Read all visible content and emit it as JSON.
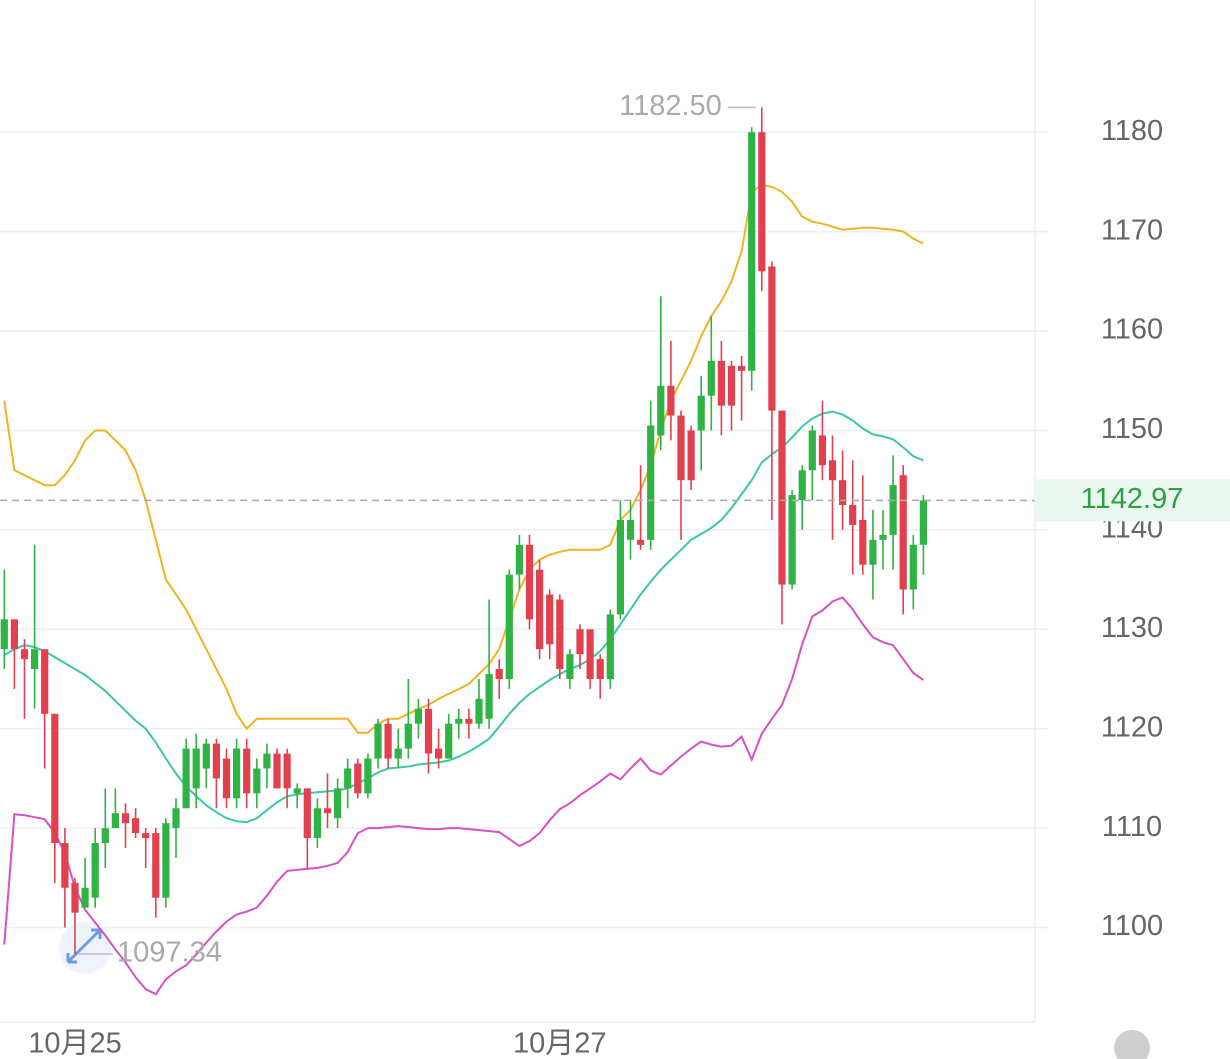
{
  "chart_data": {
    "type": "candlestick",
    "categories": [
      null,
      null,
      null,
      null,
      null,
      null,
      null,
      "10月25",
      null,
      null,
      null,
      null,
      null,
      null,
      null,
      null,
      null,
      null,
      null,
      null,
      null,
      null,
      null,
      null,
      null,
      null,
      null,
      null,
      null,
      null,
      null,
      null,
      null,
      null,
      null,
      null,
      null,
      null,
      null,
      null,
      null,
      null,
      null,
      null,
      null,
      null,
      null,
      null,
      null,
      null,
      null,
      null,
      null,
      null,
      null,
      "10月27",
      null,
      null,
      null,
      null,
      null,
      null,
      null,
      null,
      null,
      null,
      null,
      null,
      null,
      null,
      null,
      null,
      null,
      null,
      null,
      null,
      null,
      null,
      null,
      null,
      null,
      null,
      null,
      null,
      null,
      null,
      null,
      null,
      null,
      null,
      null,
      null
    ],
    "open": [
      1128,
      1131,
      1128,
      1126,
      1128,
      1121.5,
      1108.5,
      1104.5,
      1102,
      1103,
      1108.5,
      1110,
      1111.5,
      1111,
      1109.5,
      1109.5,
      1103,
      1110,
      1112,
      1114,
      1116,
      1118.5,
      1117,
      1113,
      1118,
      1113.5,
      1116,
      1117.5,
      1117.5,
      1113.5,
      1114,
      1109,
      1112,
      1111,
      1114,
      1116.5,
      1113.5,
      1117,
      1120.5,
      1117,
      1118,
      1120.5,
      1122,
      1118,
      1117,
      1120.5,
      1121,
      1120.5,
      1121,
      1126,
      1125,
      1135.5,
      1138.5,
      1136,
      1133.5,
      1133,
      1125,
      1130,
      1130,
      1127,
      1125,
      1131.5,
      1139,
      1139,
      1139,
      1149.5,
      1154.5,
      1151.5,
      1150,
      1150,
      1153.5,
      1157,
      1156.5,
      1156.5,
      1156,
      1180,
      1166.5,
      1152,
      1134.5,
      1143,
      1146,
      1149.5,
      1147,
      1145,
      1142.5,
      1141,
      1136.5,
      1139,
      1139.5,
      1145.5,
      1134,
      1138.5
    ],
    "high": [
      1136,
      1131,
      1129,
      1138.5,
      1128,
      1121.5,
      1110,
      1105,
      1107,
      1110,
      1114,
      1114,
      1112.5,
      1112,
      1110,
      1110,
      1111,
      1113,
      1119,
      1119.5,
      1119,
      1119,
      1118,
      1119,
      1119,
      1117,
      1118.5,
      1118,
      1118,
      1114.5,
      1114,
      1113,
      1115.5,
      1115,
      1117,
      1117,
      1117.5,
      1121,
      1121,
      1120,
      1125,
      1123,
      1123,
      1120,
      1121.5,
      1122,
      1122,
      1125,
      1133,
      1127,
      1136,
      1139.5,
      1139.5,
      1137,
      1134,
      1133.5,
      1128,
      1130.5,
      1130,
      1127.5,
      1132,
      1143,
      1143,
      1146.5,
      1153,
      1163.5,
      1159,
      1152,
      1150.5,
      1155.5,
      1161.5,
      1159,
      1157,
      1157.5,
      1180.5,
      1182.5,
      1167,
      1152,
      1144,
      1146.5,
      1150.5,
      1153,
      1149.5,
      1148,
      1147,
      1145.5,
      1142,
      1142,
      1147.5,
      1146.5,
      1139.5,
      1143.5
    ],
    "low": [
      1126,
      1124,
      1121,
      1122,
      1116,
      1104.5,
      1100,
      1097.34,
      1102,
      1102,
      1106,
      1110,
      1108,
      1109,
      1106,
      1101,
      1102,
      1107,
      1112,
      1112,
      1114,
      1112,
      1112,
      1112,
      1112,
      1112,
      1114,
      1114,
      1112,
      1112,
      1106,
      1108,
      1110,
      1110,
      1112,
      1113,
      1113,
      1116,
      1116,
      1116,
      1117,
      1119,
      1115.5,
      1116,
      1117,
      1119,
      1119,
      1120,
      1120,
      1123,
      1124,
      1134,
      1130,
      1127,
      1127,
      1125,
      1124,
      1126,
      1124,
      1123,
      1124,
      1131,
      1137,
      1138,
      1138,
      1148,
      1149,
      1139,
      1144,
      1146,
      1150,
      1149.5,
      1150,
      1151,
      1154,
      1164,
      1141,
      1130.5,
      1134,
      1140,
      1143,
      1145,
      1139,
      1140,
      1135.5,
      1135.5,
      1133,
      1136,
      1136,
      1131.5,
      1132,
      1135.5
    ],
    "close": [
      1131,
      1128,
      1127,
      1128,
      1121.5,
      1108.5,
      1104,
      1101.5,
      1104,
      1108.5,
      1110,
      1111.5,
      1110.5,
      1109.5,
      1109,
      1103,
      1110.5,
      1112,
      1118,
      1118,
      1118.5,
      1115,
      1113,
      1118,
      1113.5,
      1116,
      1117.5,
      1114,
      1114,
      1114,
      1109,
      1112,
      1111.5,
      1114,
      1116,
      1113.5,
      1117,
      1120.5,
      1117,
      1118,
      1120.5,
      1122,
      1117.5,
      1117,
      1120.5,
      1121,
      1120.5,
      1123,
      1125.5,
      1125,
      1135.5,
      1138.5,
      1131,
      1128,
      1128.5,
      1126,
      1127.5,
      1127.5,
      1125,
      1125,
      1131.5,
      1141,
      1141,
      1138.5,
      1150.5,
      1154.5,
      1151.5,
      1145,
      1145,
      1153.5,
      1157,
      1152.5,
      1152.5,
      1156,
      1180,
      1166,
      1152,
      1134.5,
      1143.5,
      1146,
      1150,
      1146.5,
      1145,
      1142.5,
      1140.5,
      1136.5,
      1139,
      1139.5,
      1144.5,
      1134,
      1138.5,
      1142.97
    ],
    "up_color": "#2fb344",
    "down_color": "#e2404f",
    "bands": [
      {
        "color": "#f0b323",
        "values": [
          1153,
          1146,
          1145.5,
          1145,
          1144.5,
          1144.5,
          1145.5,
          1147,
          1149,
          1150,
          1150,
          1149,
          1148,
          1146,
          1143,
          1139,
          1135,
          1133.5,
          1132,
          1130,
          1128,
          1126,
          1124,
          1121.5,
          1120,
          1121,
          1121,
          1121,
          1121,
          1121,
          1121,
          1121,
          1121,
          1121,
          1121,
          1119.6,
          1119.6,
          1120.5,
          1121,
          1121,
          1121.5,
          1122,
          1122.4,
          1123,
          1123.5,
          1124,
          1124.5,
          1125.5,
          1126.5,
          1128,
          1131,
          1134,
          1136,
          1137,
          1137.5,
          1137.8,
          1138,
          1138,
          1138,
          1138,
          1138.5,
          1141,
          1142,
          1144,
          1146.5,
          1150,
          1153,
          1155,
          1157,
          1159.5,
          1161.5,
          1163,
          1165,
          1168,
          1174,
          1174.7,
          1174.5,
          1174,
          1173,
          1171.5,
          1171,
          1170.8,
          1170.5,
          1170.2,
          1170.3,
          1170.4,
          1170.4,
          1170.3,
          1170.2,
          1170,
          1169.3,
          1168.8
        ]
      },
      {
        "color": "#3cc7a6",
        "values": [
          1127.4,
          1128,
          1128.4,
          1128.2,
          1127.8,
          1127.2,
          1126.6,
          1126,
          1125.4,
          1124.6,
          1123.8,
          1122.8,
          1121.8,
          1120.8,
          1120,
          1118.6,
          1117,
          1115.5,
          1114.2,
          1113.2,
          1112.3,
          1111.6,
          1111,
          1110.7,
          1110.6,
          1111,
          1111.8,
          1112.6,
          1113.2,
          1113.4,
          1113.5,
          1113.6,
          1113.7,
          1113.8,
          1114,
          1114.5,
          1115,
          1115.6,
          1116,
          1116.1,
          1116.2,
          1116.4,
          1116.5,
          1116.6,
          1116.8,
          1117.2,
          1117.7,
          1118.3,
          1119,
          1120.2,
          1121.5,
          1122.6,
          1123.5,
          1124.2,
          1124.9,
          1125.5,
          1126,
          1126.4,
          1127,
          1127.8,
          1129,
          1130.5,
          1132,
          1133.5,
          1134.8,
          1136,
          1137,
          1138,
          1139,
          1139.6,
          1140.2,
          1141,
          1142.2,
          1143.6,
          1145,
          1146.8,
          1147.6,
          1148.3,
          1149.3,
          1150.4,
          1151.2,
          1151.7,
          1151.9,
          1151.6,
          1151,
          1150.2,
          1149.6,
          1149.4,
          1149.1,
          1148.3,
          1147.4,
          1147
        ]
      },
      {
        "color": "#d94fc8",
        "values": [
          1098.3,
          1111.4,
          1111.3,
          1111.1,
          1110.9,
          1109.5,
          1107.5,
          1104,
          1101.8,
          1100.5,
          1099.2,
          1097.8,
          1096.5,
          1095,
          1093.8,
          1093.3,
          1094.8,
          1095.6,
          1096.2,
          1097.3,
          1098.5,
          1099.6,
          1100.6,
          1101.3,
          1101.6,
          1102,
          1103.2,
          1104.6,
          1105.7,
          1105.8,
          1105.9,
          1106,
          1106.2,
          1106.5,
          1107.6,
          1109.5,
          1110,
          1110,
          1110.1,
          1110.2,
          1110.1,
          1110,
          1109.9,
          1109.9,
          1110,
          1110,
          1109.9,
          1109.8,
          1109.7,
          1109.6,
          1108.9,
          1108.2,
          1108.7,
          1109.5,
          1110.8,
          1111.9,
          1112.5,
          1113.3,
          1114,
          1114.7,
          1115.5,
          1114.9,
          1116,
          1117,
          1115.8,
          1115.4,
          1116.3,
          1117.2,
          1118,
          1118.7,
          1118.4,
          1118.2,
          1118.3,
          1119.2,
          1116.9,
          1119.5,
          1121,
          1122.4,
          1125,
          1128.5,
          1131.3,
          1131.9,
          1132.8,
          1133.2,
          1132,
          1130.5,
          1129.2,
          1128.7,
          1128.4,
          1127,
          1125.6,
          1124.9
        ]
      }
    ],
    "high_mark": {
      "value": 1182.5,
      "label": "1182.50"
    },
    "low_mark": {
      "value": 1097.34,
      "label": "1097.34"
    },
    "last_price": {
      "value": 1142.97,
      "label": "1142.97"
    },
    "ylim": [
      1090.5,
      1193.3
    ],
    "yticks": [
      1100,
      1110,
      1120,
      1130,
      1140,
      1150,
      1160,
      1170,
      1180
    ],
    "grid": true
  }
}
